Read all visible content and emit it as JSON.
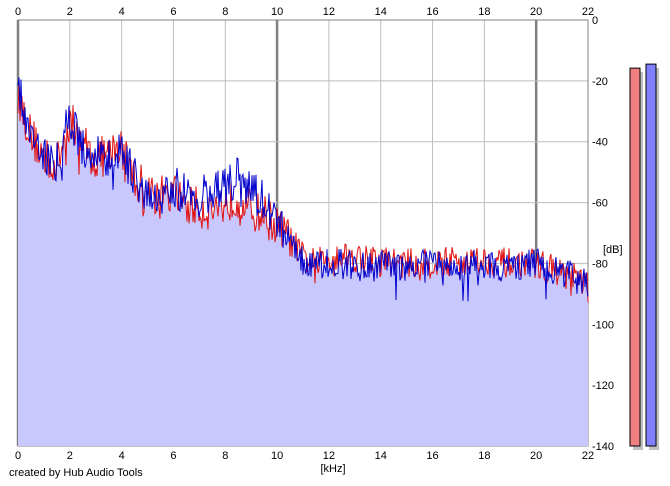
{
  "chart_data": {
    "type": "area",
    "x_axis": {
      "label": "[kHz]",
      "ticks": [
        "0",
        "2",
        "4",
        "6",
        "8",
        "10",
        "12",
        "14",
        "16",
        "18",
        "20",
        "22"
      ],
      "range": [
        0,
        22
      ]
    },
    "y_axis": {
      "label": "[dB]",
      "ticks": [
        "0",
        "-20",
        "-40",
        "-60",
        "-80",
        "-100",
        "-120",
        "-140"
      ],
      "range": [
        -140,
        0
      ]
    },
    "grid": true,
    "series": [
      {
        "color": "#e01010",
        "x": [
          0.0,
          0.5,
          1.0,
          1.5,
          2.0,
          2.5,
          3.0,
          3.5,
          4.0,
          4.5,
          5.0,
          5.5,
          6.0,
          6.5,
          7.0,
          7.5,
          8.0,
          8.5,
          9.0,
          9.5,
          10.0,
          10.5,
          11.0,
          11.5,
          12.0,
          12.5,
          13.0,
          14.0,
          15.0,
          16.0,
          17.0,
          18.0,
          19.0,
          20.0,
          21.0,
          22.0
        ],
        "values": [
          -25,
          -38,
          -45,
          -48,
          -33,
          -40,
          -46,
          -44,
          -42,
          -52,
          -56,
          -58,
          -57,
          -60,
          -62,
          -62,
          -60,
          -58,
          -63,
          -64,
          -68,
          -72,
          -78,
          -80,
          -78,
          -77,
          -78,
          -79,
          -80,
          -80,
          -79,
          -79,
          -80,
          -80,
          -83,
          -87
        ]
      },
      {
        "color": "#0000cc",
        "x": [
          0.0,
          0.5,
          1.0,
          1.5,
          2.0,
          2.5,
          3.0,
          3.5,
          4.0,
          4.5,
          5.0,
          5.5,
          6.0,
          6.5,
          7.0,
          7.5,
          8.0,
          8.5,
          9.0,
          9.5,
          10.0,
          10.5,
          11.0,
          11.5,
          12.0,
          12.5,
          13.0,
          14.0,
          15.0,
          16.0,
          17.0,
          18.0,
          19.0,
          20.0,
          21.0,
          22.0
        ],
        "values": [
          -22,
          -36,
          -44,
          -47,
          -32,
          -42,
          -44,
          -45,
          -44,
          -52,
          -55,
          -57,
          -55,
          -57,
          -58,
          -56,
          -55,
          -52,
          -56,
          -60,
          -66,
          -72,
          -79,
          -80,
          -80,
          -80,
          -81,
          -81,
          -81,
          -80,
          -81,
          -80,
          -81,
          -80,
          -83,
          -86
        ]
      }
    ],
    "fill_color": "#c8c8ff",
    "meters": [
      {
        "color": "#f08080",
        "level": 0.94
      },
      {
        "color": "#8080ff",
        "level": 0.95
      }
    ]
  },
  "footer": "created by Hub Audio Tools"
}
